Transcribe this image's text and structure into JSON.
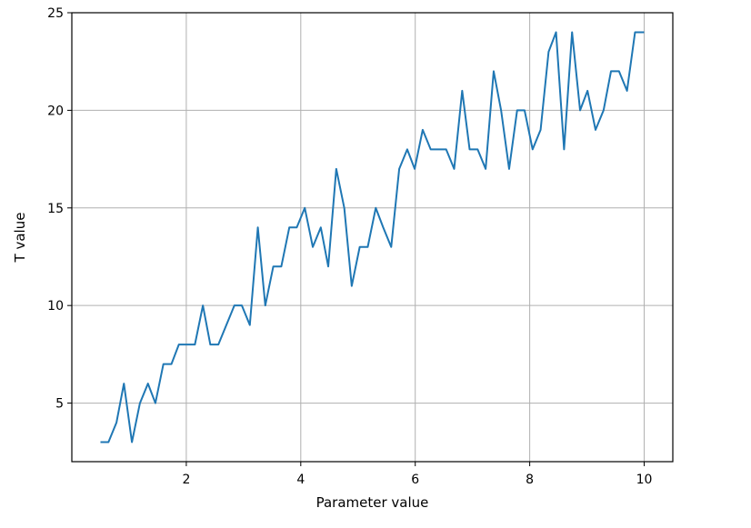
{
  "chart_data": {
    "type": "line",
    "title": "",
    "xlabel": "Parameter value",
    "ylabel": "T value",
    "xlim": [
      0.0,
      10.5
    ],
    "ylim": [
      2.0,
      25.0
    ],
    "grid": true,
    "x_ticks": [
      {
        "value": 2,
        "label": "2"
      },
      {
        "value": 4,
        "label": "4"
      },
      {
        "value": 6,
        "label": "6"
      },
      {
        "value": 8,
        "label": "8"
      },
      {
        "value": 10,
        "label": "10"
      }
    ],
    "y_ticks": [
      {
        "value": 5,
        "label": "5"
      },
      {
        "value": 10,
        "label": "10"
      },
      {
        "value": 15,
        "label": "15"
      },
      {
        "value": 20,
        "label": "20"
      },
      {
        "value": 25,
        "label": "25"
      }
    ],
    "series": [
      {
        "color": "#1f77b4",
        "x": [
          0.5,
          0.64,
          0.78,
          0.91,
          1.05,
          1.19,
          1.33,
          1.46,
          1.6,
          1.74,
          1.87,
          2.01,
          2.15,
          2.29,
          2.42,
          2.56,
          2.7,
          2.84,
          2.97,
          3.11,
          3.25,
          3.38,
          3.52,
          3.66,
          3.8,
          3.93,
          4.07,
          4.21,
          4.35,
          4.48,
          4.62,
          4.76,
          4.89,
          5.03,
          5.17,
          5.31,
          5.44,
          5.58,
          5.72,
          5.86,
          5.99,
          6.13,
          6.27,
          6.4,
          6.54,
          6.68,
          6.82,
          6.95,
          7.09,
          7.23,
          7.37,
          7.5,
          7.64,
          7.78,
          7.91,
          8.05,
          8.19,
          8.33,
          8.46,
          8.6,
          8.74,
          8.88,
          9.01,
          9.15,
          9.29,
          9.42,
          9.56,
          9.7,
          9.84,
          10.0
        ],
        "y": [
          3,
          3,
          4,
          6,
          3,
          5,
          6,
          5,
          7,
          7,
          8,
          8,
          8,
          10,
          8,
          8,
          9,
          10,
          10,
          9,
          14,
          10,
          12,
          12,
          14,
          14,
          15,
          13,
          14,
          12,
          17,
          15,
          11,
          13,
          13,
          15,
          14,
          13,
          17,
          18,
          17,
          19,
          18,
          18,
          18,
          17,
          21,
          18,
          18,
          17,
          22,
          20,
          17,
          20,
          20,
          18,
          19,
          23,
          24,
          18,
          24,
          20,
          21,
          19,
          20,
          22,
          22,
          21,
          24,
          24
        ]
      }
    ]
  }
}
